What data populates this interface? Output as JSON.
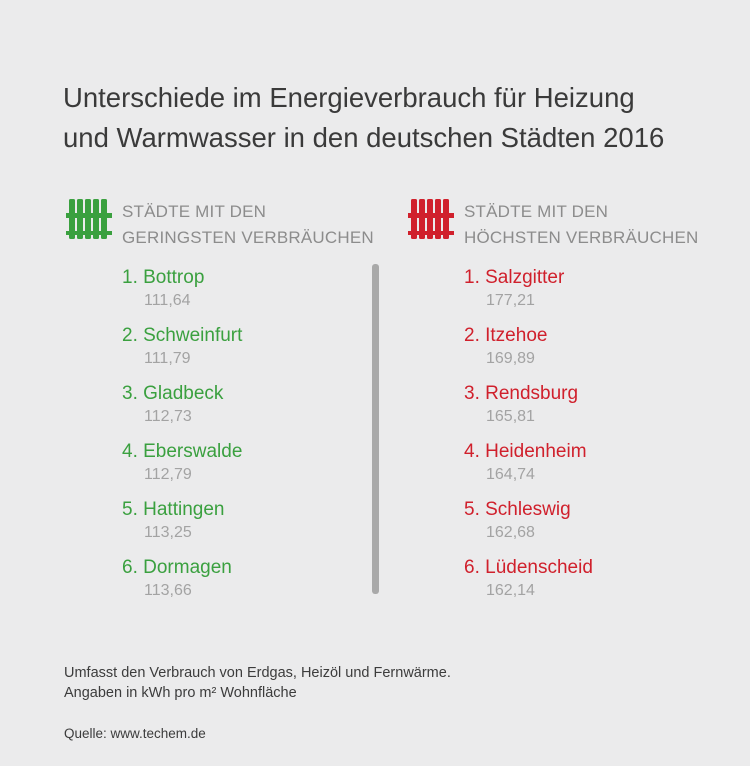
{
  "title": {
    "line1": "Unterschiede im Energieverbrauch für Heizung",
    "line2": "und Warmwasser in den deutschen Städten 2016"
  },
  "colors": {
    "low": "#3aa03f",
    "high": "#d0202c"
  },
  "low": {
    "icon": "radiator-icon",
    "header_line1": "STÄDTE MIT DEN",
    "header_line2": "GERINGSTEN VERBRÄUCHEN",
    "items": [
      {
        "name": "1. Bottrop",
        "value": "111,64"
      },
      {
        "name": "2. Schweinfurt",
        "value": "111,79"
      },
      {
        "name": "3. Gladbeck",
        "value": "112,73"
      },
      {
        "name": "4. Eberswalde",
        "value": "112,79"
      },
      {
        "name": "5. Hattingen",
        "value": "113,25"
      },
      {
        "name": "6. Dormagen",
        "value": "113,66"
      }
    ]
  },
  "high": {
    "icon": "radiator-icon",
    "header_line1": "STÄDTE MIT DEN",
    "header_line2": "HÖCHSTEN VERBRÄUCHEN",
    "items": [
      {
        "name": "1. Salzgitter",
        "value": "177,21"
      },
      {
        "name": "2. Itzehoe",
        "value": "169,89"
      },
      {
        "name": "3. Rendsburg",
        "value": "165,81"
      },
      {
        "name": "4. Heidenheim",
        "value": "164,74"
      },
      {
        "name": "5. Schleswig",
        "value": "162,68"
      },
      {
        "name": "6. Lüdenscheid",
        "value": "162,14"
      }
    ]
  },
  "footnote": {
    "line1": "Umfasst den Verbrauch von Erdgas, Heizöl und Fernwärme.",
    "line2": "Angaben in kWh pro m² Wohnfläche"
  },
  "source": "Quelle: www.techem.de"
}
